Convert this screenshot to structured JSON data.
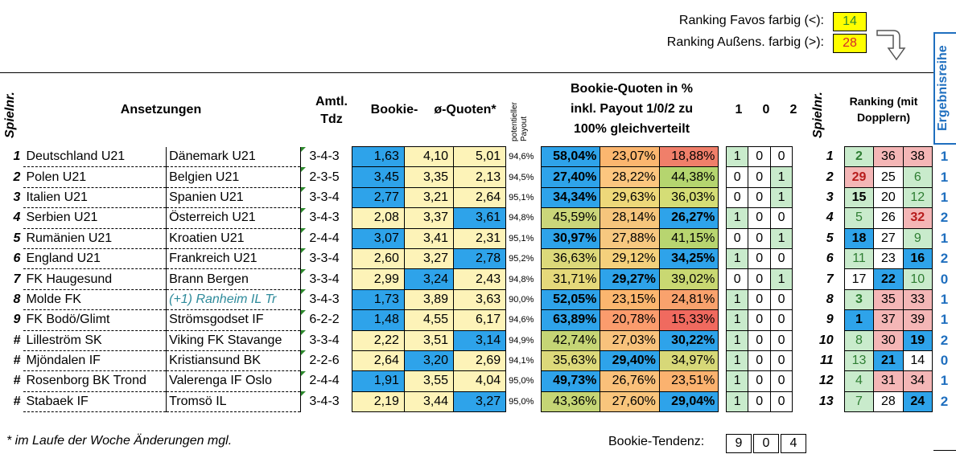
{
  "ranking": {
    "favos_label": "Ranking Favos farbig (<):",
    "favos_value": "14",
    "aussen_label": "Ranking Außens. farbig (>):",
    "aussen_value": "28"
  },
  "headers": {
    "spielnr": "Spielnr.",
    "ansetzungen": "Ansetzungen",
    "amtl": "Amtl.",
    "tdz": "Tdz",
    "bookie": "Bookie-",
    "quoten": "ø-Quoten*",
    "payout": "potentieller Payout",
    "percent_line1": "Bookie-Quoten in %",
    "percent_line2": "inkl. Payout 1/0/2 zu",
    "percent_line3": "100% gleichverteilt",
    "t1": "1",
    "t0": "0",
    "t2": "2",
    "spielnr2": "Spielnr.",
    "ranking_line1": "Ranking (mit",
    "ranking_line2": "Dopplern)",
    "ergebnisreihe": "Ergebnisreihe"
  },
  "colors": {
    "blue": "#2ea3ea",
    "light_yellow": "#fdf3b8",
    "light_green": "#c9ebcc",
    "pink": "#f4b6b6",
    "result_blue": "#1f6fbf"
  },
  "rows": [
    {
      "nr": "1",
      "home": "Deutschland U21",
      "away": "Dänemark U21",
      "tdz": "3-4-3",
      "q1": "1,63",
      "q0": "4,10",
      "q2": "5,01",
      "pay": "94,6%",
      "p1": "58,04%",
      "p0": "23,07%",
      "p2": "18,88%",
      "t1": "1",
      "t0": "0",
      "t2": "0",
      "nr2": "1",
      "r1": "2",
      "r0": "36",
      "r2": "38",
      "res": "1"
    },
    {
      "nr": "2",
      "home": "Polen U21",
      "away": "Belgien U21",
      "tdz": "2-3-5",
      "q1": "3,45",
      "q0": "3,35",
      "q2": "2,13",
      "pay": "94,5%",
      "p1": "27,40%",
      "p0": "28,22%",
      "p2": "44,38%",
      "t1": "0",
      "t0": "0",
      "t2": "1",
      "nr2": "2",
      "r1": "29",
      "r0": "25",
      "r2": "6",
      "res": "1"
    },
    {
      "nr": "3",
      "home": "Italien U21",
      "away": "Spanien U21",
      "tdz": "3-3-4",
      "q1": "2,77",
      "q0": "3,21",
      "q2": "2,64",
      "pay": "95,1%",
      "p1": "34,34%",
      "p0": "29,63%",
      "p2": "36,03%",
      "t1": "0",
      "t0": "0",
      "t2": "1",
      "nr2": "3",
      "r1": "15",
      "r0": "20",
      "r2": "12",
      "res": "1"
    },
    {
      "nr": "4",
      "home": "Serbien U21",
      "away": "Österreich U21",
      "tdz": "3-4-3",
      "q1": "2,08",
      "q0": "3,37",
      "q2": "3,61",
      "pay": "94,8%",
      "p1": "45,59%",
      "p0": "28,14%",
      "p2": "26,27%",
      "t1": "1",
      "t0": "0",
      "t2": "0",
      "nr2": "4",
      "r1": "5",
      "r0": "26",
      "r2": "32",
      "res": "2"
    },
    {
      "nr": "5",
      "home": "Rumänien U21",
      "away": "Kroatien U21",
      "tdz": "2-4-4",
      "q1": "3,07",
      "q0": "3,41",
      "q2": "2,31",
      "pay": "95,1%",
      "p1": "30,97%",
      "p0": "27,88%",
      "p2": "41,15%",
      "t1": "0",
      "t0": "0",
      "t2": "1",
      "nr2": "5",
      "r1": "18",
      "r0": "27",
      "r2": "9",
      "res": "1"
    },
    {
      "nr": "6",
      "home": "England U21",
      "away": "Frankreich U21",
      "tdz": "3-3-4",
      "q1": "2,60",
      "q0": "3,27",
      "q2": "2,78",
      "pay": "95,2%",
      "p1": "36,63%",
      "p0": "29,12%",
      "p2": "34,25%",
      "t1": "1",
      "t0": "0",
      "t2": "0",
      "nr2": "6",
      "r1": "11",
      "r0": "23",
      "r2": "16",
      "res": "2"
    },
    {
      "nr": "7",
      "home": "FK Haugesund",
      "away": "Brann Bergen",
      "tdz": "3-3-4",
      "q1": "2,99",
      "q0": "3,24",
      "q2": "2,43",
      "pay": "94,8%",
      "p1": "31,71%",
      "p0": "29,27%",
      "p2": "39,02%",
      "t1": "0",
      "t0": "0",
      "t2": "1",
      "nr2": "7",
      "r1": "17",
      "r0": "22",
      "r2": "10",
      "res": "0"
    },
    {
      "nr": "8",
      "home": "Molde FK",
      "away": "(+1) Ranheim IL Tr",
      "tdz": "3-4-3",
      "q1": "1,73",
      "q0": "3,89",
      "q2": "3,63",
      "pay": "90,0%",
      "p1": "52,05%",
      "p0": "23,15%",
      "p2": "24,81%",
      "t1": "1",
      "t0": "0",
      "t2": "0",
      "nr2": "8",
      "r1": "3",
      "r0": "35",
      "r2": "33",
      "res": "1"
    },
    {
      "nr": "9",
      "home": "FK Bodö/Glimt",
      "away": "Strömsgodset IF",
      "tdz": "6-2-2",
      "q1": "1,48",
      "q0": "4,55",
      "q2": "6,17",
      "pay": "94,6%",
      "p1": "63,89%",
      "p0": "20,78%",
      "p2": "15,33%",
      "t1": "1",
      "t0": "0",
      "t2": "0",
      "nr2": "9",
      "r1": "1",
      "r0": "37",
      "r2": "39",
      "res": "1"
    },
    {
      "nr": "#",
      "home": "Lilleström SK",
      "away": "Viking FK Stavange",
      "tdz": "3-3-4",
      "q1": "2,22",
      "q0": "3,51",
      "q2": "3,14",
      "pay": "94,9%",
      "p1": "42,74%",
      "p0": "27,03%",
      "p2": "30,22%",
      "t1": "1",
      "t0": "0",
      "t2": "0",
      "nr2": "10",
      "r1": "8",
      "r0": "30",
      "r2": "19",
      "res": "2"
    },
    {
      "nr": "#",
      "home": "Mjöndalen IF",
      "away": "Kristiansund BK",
      "tdz": "2-2-6",
      "q1": "2,64",
      "q0": "3,20",
      "q2": "2,69",
      "pay": "94,1%",
      "p1": "35,63%",
      "p0": "29,40%",
      "p2": "34,97%",
      "t1": "1",
      "t0": "0",
      "t2": "0",
      "nr2": "11",
      "r1": "13",
      "r0": "21",
      "r2": "14",
      "res": "0"
    },
    {
      "nr": "#",
      "home": "Rosenborg BK Trond",
      "away": "Valerenga IF Oslo",
      "tdz": "2-4-4",
      "q1": "1,91",
      "q0": "3,55",
      "q2": "4,04",
      "pay": "95,0%",
      "p1": "49,73%",
      "p0": "26,76%",
      "p2": "23,51%",
      "t1": "1",
      "t0": "0",
      "t2": "0",
      "nr2": "12",
      "r1": "4",
      "r0": "31",
      "r2": "34",
      "res": "1"
    },
    {
      "nr": "#",
      "home": "Stabaek IF",
      "away": "Tromsö IL",
      "tdz": "3-4-3",
      "q1": "2,19",
      "q0": "3,44",
      "q2": "3,27",
      "pay": "95,0%",
      "p1": "43,36%",
      "p0": "27,60%",
      "p2": "29,04%",
      "t1": "1",
      "t0": "0",
      "t2": "0",
      "nr2": "13",
      "r1": "7",
      "r0": "28",
      "r2": "24",
      "res": "2"
    }
  ],
  "footer": {
    "note": "* im Laufe der Woche Änderungen mgl.",
    "tendenz_label": "Bookie-Tendenz:",
    "tendenz_1": "9",
    "tendenz_0": "0",
    "tendenz_2": "4"
  }
}
